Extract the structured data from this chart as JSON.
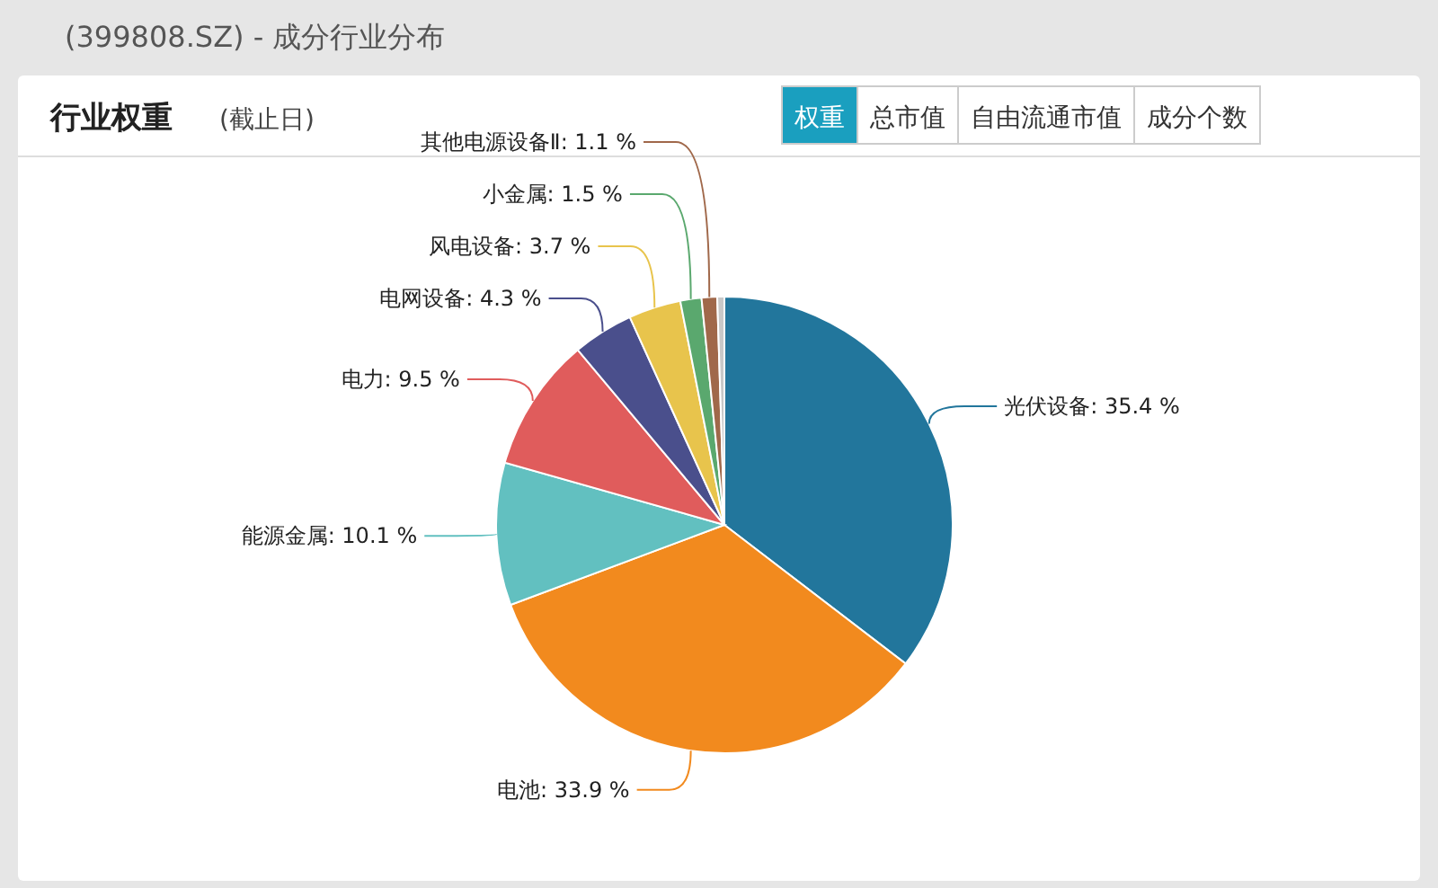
{
  "chart_data": {
    "type": "pie",
    "title": "(399808.SZ) - 成分行业分布",
    "subtitle": "行业权重",
    "annotations": [
      "(截止日)",
      "权重",
      "总市值",
      "自由流通市值",
      "成分个数"
    ],
    "categories": [
      "光伏设备",
      "电池",
      "能源金属",
      "电力",
      "电网设备",
      "风电设备",
      "小金属",
      "其他电源设备Ⅱ",
      null
    ],
    "values": [
      35.4,
      33.9,
      10.1,
      9.5,
      4.3,
      3.7,
      1.5,
      1.1,
      0.5
    ],
    "colors": [
      "#22769c",
      "#f28a1e",
      "#62c0c0",
      "#e05c5c",
      "#4a4f8c",
      "#e8c44c",
      "#5aa86e",
      "#a0684a",
      "#c8c8c8"
    ],
    "value_labels": [
      ": 35.4 %",
      ": 33.9 %",
      ": 10.1 %",
      ": 9.5 %",
      ": 4.3 %",
      ": 3.7 %",
      ": 1.5 %",
      ": 1.1 %",
      null
    ]
  }
}
